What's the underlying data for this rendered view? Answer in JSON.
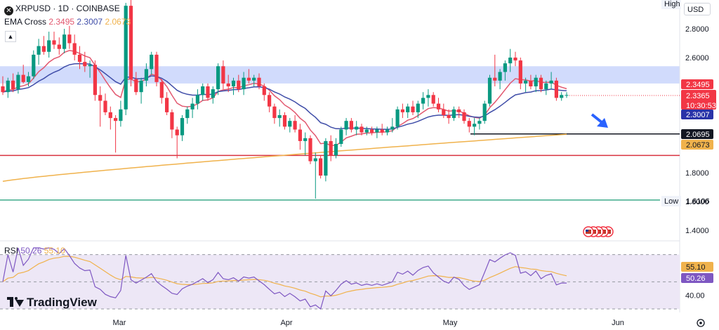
{
  "header": {
    "symbol": "XRPUSD · 1D · COINBASE",
    "ema_label": "EMA Cross",
    "ema_fast": "2.3495",
    "ema_slow": "2.3007",
    "ema_long": "2.0673",
    "rsi_label": "RSI",
    "rsi_value": "50.26",
    "rsi_ma": "55.10",
    "currency": "USD",
    "high_label": "High",
    "low_label": "Low",
    "brand": "TradingView"
  },
  "colors": {
    "up": "#089981",
    "down": "#f23645",
    "ema_fast": "#e2586f",
    "ema_slow": "#3f4da8",
    "ema_long": "#f0b24c",
    "zone": "#c9d5fb",
    "support_red": "#d9323f",
    "low_line": "#3dab8a",
    "black_line": "#131722",
    "rsi_line": "#7e57c2",
    "rsi_ma": "#f0b24c",
    "rsi_bg": "#ede7f6"
  },
  "chart_data": {
    "type": "candlestick",
    "title": "XRPUSD · 1D · COINBASE",
    "x_tick_labels": [
      "Mar",
      "Apr",
      "May",
      "Jun"
    ],
    "y_ticks": [
      "2.8000",
      "2.6000",
      "2.4000",
      "2.2000",
      "2.0000",
      "1.8000",
      "1.6000",
      "1.4000"
    ],
    "ylim": [
      1.3,
      3.0
    ],
    "price_labels": {
      "ema_fast": "2.3495",
      "current": "2.3365",
      "countdown": "10:30:53",
      "ema_slow": "2.3007",
      "black_level": "2.0695",
      "ema_long": "2.0673",
      "low": "1.6106"
    },
    "levels": {
      "supply_zone": [
        2.42,
        2.54
      ],
      "black_level": 2.0695,
      "red_support": 1.92,
      "low": 1.6106
    },
    "candles": [
      [
        2.4,
        2.47,
        2.34,
        2.36
      ],
      [
        2.36,
        2.46,
        2.32,
        2.44
      ],
      [
        2.44,
        2.49,
        2.36,
        2.38
      ],
      [
        2.38,
        2.5,
        2.35,
        2.48
      ],
      [
        2.48,
        2.55,
        2.42,
        2.43
      ],
      [
        2.43,
        2.5,
        2.4,
        2.47
      ],
      [
        2.47,
        2.65,
        2.45,
        2.62
      ],
      [
        2.62,
        2.73,
        2.55,
        2.68
      ],
      [
        2.68,
        2.75,
        2.62,
        2.64
      ],
      [
        2.64,
        2.78,
        2.6,
        2.72
      ],
      [
        2.72,
        2.78,
        2.66,
        2.69
      ],
      [
        2.69,
        2.74,
        2.62,
        2.66
      ],
      [
        2.66,
        2.8,
        2.63,
        2.76
      ],
      [
        2.76,
        2.82,
        2.66,
        2.7
      ],
      [
        2.7,
        2.76,
        2.58,
        2.62
      ],
      [
        2.62,
        2.68,
        2.52,
        2.57
      ],
      [
        2.57,
        2.64,
        2.5,
        2.54
      ],
      [
        2.54,
        2.58,
        2.46,
        2.55
      ],
      [
        2.55,
        2.58,
        2.3,
        2.34
      ],
      [
        2.34,
        2.4,
        2.12,
        2.3
      ],
      [
        2.3,
        2.35,
        2.2,
        2.22
      ],
      [
        2.22,
        2.26,
        2.1,
        2.18
      ],
      [
        2.18,
        2.2,
        1.94,
        2.16
      ],
      [
        2.16,
        2.3,
        2.12,
        2.24
      ],
      [
        2.24,
        2.98,
        2.2,
        2.96
      ],
      [
        2.96,
        3.0,
        2.4,
        2.45
      ],
      [
        2.45,
        2.5,
        2.34,
        2.36
      ],
      [
        2.36,
        2.46,
        2.28,
        2.44
      ],
      [
        2.44,
        2.56,
        2.4,
        2.52
      ],
      [
        2.52,
        2.64,
        2.48,
        2.62
      ],
      [
        2.62,
        2.64,
        2.4,
        2.43
      ],
      [
        2.43,
        2.45,
        2.28,
        2.32
      ],
      [
        2.32,
        2.36,
        2.2,
        2.22
      ],
      [
        2.22,
        2.24,
        2.04,
        2.1
      ],
      [
        2.1,
        2.12,
        1.9,
        2.06
      ],
      [
        2.06,
        2.2,
        2.02,
        2.18
      ],
      [
        2.18,
        2.26,
        2.14,
        2.24
      ],
      [
        2.24,
        2.32,
        2.18,
        2.28
      ],
      [
        2.28,
        2.38,
        2.24,
        2.34
      ],
      [
        2.34,
        2.42,
        2.3,
        2.4
      ],
      [
        2.4,
        2.42,
        2.3,
        2.32
      ],
      [
        2.32,
        2.4,
        2.28,
        2.38
      ],
      [
        2.38,
        2.56,
        2.34,
        2.54
      ],
      [
        2.54,
        2.58,
        2.38,
        2.42
      ],
      [
        2.42,
        2.48,
        2.36,
        2.4
      ],
      [
        2.4,
        2.46,
        2.34,
        2.44
      ],
      [
        2.44,
        2.48,
        2.36,
        2.38
      ],
      [
        2.38,
        2.5,
        2.34,
        2.46
      ],
      [
        2.46,
        2.52,
        2.42,
        2.44
      ],
      [
        2.44,
        2.48,
        2.4,
        2.46
      ],
      [
        2.46,
        2.49,
        2.38,
        2.4
      ],
      [
        2.4,
        2.42,
        2.3,
        2.34
      ],
      [
        2.34,
        2.36,
        2.22,
        2.26
      ],
      [
        2.26,
        2.28,
        2.14,
        2.18
      ],
      [
        2.18,
        2.24,
        2.12,
        2.2
      ],
      [
        2.2,
        2.22,
        2.1,
        2.12
      ],
      [
        2.12,
        2.18,
        2.08,
        2.16
      ],
      [
        2.16,
        2.2,
        2.08,
        2.1
      ],
      [
        2.1,
        2.14,
        1.96,
        2.02
      ],
      [
        2.02,
        2.08,
        1.92,
        2.04
      ],
      [
        2.04,
        2.06,
        1.86,
        1.88
      ],
      [
        1.88,
        1.94,
        1.62,
        1.9
      ],
      [
        1.9,
        1.92,
        1.76,
        1.78
      ],
      [
        1.78,
        2.04,
        1.74,
        2.02
      ],
      [
        2.02,
        2.06,
        1.88,
        1.92
      ],
      [
        1.92,
        2.04,
        1.9,
        2.0
      ],
      [
        2.0,
        2.12,
        1.98,
        2.1
      ],
      [
        2.1,
        2.18,
        2.06,
        2.16
      ],
      [
        2.16,
        2.18,
        2.08,
        2.1
      ],
      [
        2.1,
        2.16,
        2.06,
        2.12
      ],
      [
        2.12,
        2.14,
        2.06,
        2.08
      ],
      [
        2.08,
        2.12,
        2.06,
        2.1
      ],
      [
        2.1,
        2.12,
        2.06,
        2.08
      ],
      [
        2.08,
        2.12,
        2.04,
        2.1
      ],
      [
        2.1,
        2.14,
        2.06,
        2.08
      ],
      [
        2.08,
        2.12,
        2.06,
        2.1
      ],
      [
        2.1,
        2.18,
        2.08,
        2.12
      ],
      [
        2.12,
        2.26,
        2.1,
        2.24
      ],
      [
        2.24,
        2.28,
        2.18,
        2.22
      ],
      [
        2.22,
        2.28,
        2.18,
        2.26
      ],
      [
        2.26,
        2.3,
        2.2,
        2.22
      ],
      [
        2.22,
        2.3,
        2.18,
        2.28
      ],
      [
        2.28,
        2.36,
        2.24,
        2.32
      ],
      [
        2.32,
        2.38,
        2.26,
        2.34
      ],
      [
        2.34,
        2.36,
        2.26,
        2.28
      ],
      [
        2.28,
        2.32,
        2.22,
        2.24
      ],
      [
        2.24,
        2.28,
        2.18,
        2.2
      ],
      [
        2.2,
        2.24,
        2.14,
        2.18
      ],
      [
        2.18,
        2.26,
        2.16,
        2.24
      ],
      [
        2.24,
        2.26,
        2.18,
        2.22
      ],
      [
        2.22,
        2.24,
        2.14,
        2.16
      ],
      [
        2.16,
        2.18,
        2.08,
        2.12
      ],
      [
        2.12,
        2.18,
        2.06,
        2.14
      ],
      [
        2.14,
        2.18,
        2.1,
        2.16
      ],
      [
        2.16,
        2.3,
        2.14,
        2.28
      ],
      [
        2.28,
        2.48,
        2.26,
        2.46
      ],
      [
        2.46,
        2.62,
        2.4,
        2.44
      ],
      [
        2.44,
        2.52,
        2.38,
        2.5
      ],
      [
        2.5,
        2.58,
        2.44,
        2.56
      ],
      [
        2.56,
        2.66,
        2.5,
        2.6
      ],
      [
        2.6,
        2.64,
        2.54,
        2.58
      ],
      [
        2.58,
        2.6,
        2.38,
        2.42
      ],
      [
        2.42,
        2.46,
        2.36,
        2.44
      ],
      [
        2.44,
        2.48,
        2.38,
        2.4
      ],
      [
        2.4,
        2.48,
        2.36,
        2.46
      ],
      [
        2.46,
        2.48,
        2.36,
        2.38
      ],
      [
        2.38,
        2.44,
        2.34,
        2.42
      ],
      [
        2.42,
        2.5,
        2.38,
        2.44
      ],
      [
        2.44,
        2.46,
        2.3,
        2.32
      ],
      [
        2.32,
        2.36,
        2.3,
        2.34
      ],
      [
        2.34,
        2.36,
        2.32,
        2.34
      ]
    ],
    "rsi": {
      "ylim": [
        30,
        75
      ],
      "levels": [
        70,
        50,
        30
      ],
      "tick_labels": [
        "60.00",
        "40.00"
      ]
    }
  }
}
